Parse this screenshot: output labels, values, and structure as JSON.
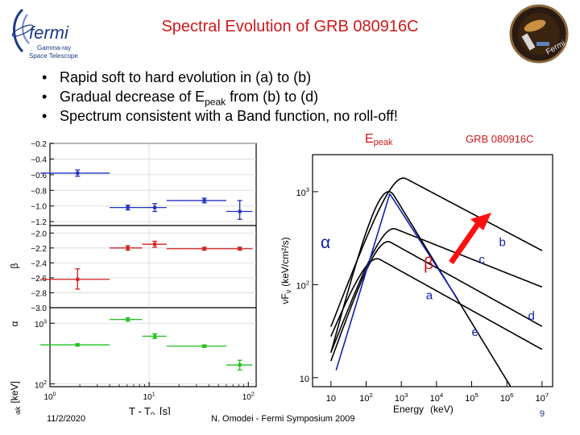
{
  "slide": {
    "title": "Spectral Evolution of GRB 080916C",
    "bullets": [
      "Rapid soft to hard evolution in (a) to (b)",
      "Gradual decrease of E",
      "Spectrum consistent with a Band function, no roll-off!"
    ],
    "bullet2_sub": "peak",
    "bullet2_tail": " from (b) to (d)",
    "footer": {
      "date": "11/2/2020",
      "author": "N. Omodei - Fermi Symposium 2009",
      "page": "9"
    }
  },
  "logo": {
    "name": "fermi",
    "subtitle1": "Gamma-ray",
    "subtitle2": "Space Telescope"
  },
  "patch": {
    "text": "Fermi"
  },
  "colors": {
    "title": "#d01818",
    "alpha_series": "#2030c0",
    "beta_series": "#d02020",
    "epeak_series": "#20c020",
    "arrow": "#ff1010"
  },
  "chart_data": [
    {
      "type": "scatter",
      "panel": "alpha",
      "ylabel": "α",
      "yticks": [
        "-0.2",
        "-0.4",
        "-0.6",
        "-0.8",
        "-1.0",
        "-1.2"
      ],
      "ylim": [
        -1.25,
        -0.2
      ],
      "x_scale": "log",
      "xlim": [
        1,
        120
      ],
      "points": [
        {
          "x": 1.9,
          "y": -0.58,
          "xlo": 0.8,
          "xhi": 4,
          "ylo": -0.62,
          "yhi": -0.54
        },
        {
          "x": 6.1,
          "y": -1.02,
          "xlo": 4,
          "xhi": 8.5,
          "ylo": -1.05,
          "yhi": -0.99
        },
        {
          "x": 11.4,
          "y": -1.02,
          "xlo": 8.5,
          "xhi": 15,
          "ylo": -1.07,
          "yhi": -0.97
        },
        {
          "x": 36,
          "y": -0.93,
          "xlo": 15,
          "xhi": 60,
          "ylo": -0.96,
          "yhi": -0.9
        },
        {
          "x": 82,
          "y": -1.07,
          "xlo": 60,
          "xhi": 110,
          "ylo": -1.17,
          "yhi": -0.93
        }
      ]
    },
    {
      "type": "scatter",
      "panel": "beta",
      "ylabel": "β",
      "yticks": [
        "-2.0",
        "-2.2",
        "-2.4",
        "-2.6",
        "-2.8",
        "-3.0"
      ],
      "ylim": [
        -3.0,
        -1.9
      ],
      "x_scale": "log",
      "xlim": [
        1,
        120
      ],
      "points": [
        {
          "x": 1.9,
          "y": -2.62,
          "xlo": 0.8,
          "xhi": 4,
          "ylo": -2.75,
          "yhi": -2.48
        },
        {
          "x": 6.1,
          "y": -2.2,
          "xlo": 4,
          "xhi": 8.5,
          "ylo": -2.23,
          "yhi": -2.17
        },
        {
          "x": 11.4,
          "y": -2.15,
          "xlo": 8.5,
          "xhi": 15,
          "ylo": -2.19,
          "yhi": -2.11
        },
        {
          "x": 36,
          "y": -2.21,
          "xlo": 15,
          "xhi": 60,
          "ylo": -2.23,
          "yhi": -2.19
        },
        {
          "x": 82,
          "y": -2.21,
          "xlo": 60,
          "xhi": 110,
          "ylo": -2.23,
          "yhi": -2.19
        }
      ]
    },
    {
      "type": "scatter",
      "panel": "epeak",
      "ylabel": "E",
      "ylabel_sub": "peak",
      "ylabel_unit": "[keV]",
      "xlabel": "T - T",
      "xlabel_sub": "0",
      "xlabel_unit": "[s]",
      "yticks": [
        "10^3",
        "10^2"
      ],
      "ylim": [
        90,
        1800
      ],
      "y_scale": "log",
      "x_scale": "log",
      "xlim": [
        1,
        120
      ],
      "xticks": [
        "10^0",
        "10^1",
        "10^2"
      ],
      "points": [
        {
          "x": 1.9,
          "y": 440,
          "xlo": 0.8,
          "xhi": 4,
          "ylo": 420,
          "yhi": 460
        },
        {
          "x": 6.1,
          "y": 1150,
          "xlo": 4,
          "xhi": 8.5,
          "ylo": 1080,
          "yhi": 1230
        },
        {
          "x": 11.4,
          "y": 610,
          "xlo": 8.5,
          "xhi": 15,
          "ylo": 560,
          "yhi": 670
        },
        {
          "x": 36,
          "y": 420,
          "xlo": 15,
          "xhi": 60,
          "ylo": 400,
          "yhi": 440
        },
        {
          "x": 82,
          "y": 205,
          "xlo": 60,
          "xhi": 110,
          "ylo": 170,
          "yhi": 245
        }
      ]
    },
    {
      "type": "line",
      "panel": "spectra",
      "title": "GRB 080916C",
      "ylabel": "νF",
      "ylabel_sub": "ν",
      "ylabel_unit": "(keV/cm²/s)",
      "xlabel": "Energy",
      "xlabel_unit": "(keV)",
      "x_scale": "log",
      "y_scale": "log",
      "xlim": [
        3,
        20000000
      ],
      "ylim": [
        8,
        2500
      ],
      "xticks": [
        "10",
        "10^2",
        "10^3",
        "10^4",
        "10^5",
        "10^6",
        "10^7"
      ],
      "yticks": [
        "10^3",
        "10^2",
        "10"
      ],
      "annotations": [
        "E",
        "peak",
        "α",
        "β"
      ],
      "series": [
        {
          "name": "a",
          "alpha": -0.58,
          "beta": -2.62,
          "epeak": 440,
          "peak_flux": 1000
        },
        {
          "name": "b",
          "alpha": -1.02,
          "beta": -2.2,
          "epeak": 1150,
          "peak_flux": 1400
        },
        {
          "name": "c",
          "alpha": -1.02,
          "beta": -2.15,
          "epeak": 610,
          "peak_flux": 400
        },
        {
          "name": "d",
          "alpha": -0.93,
          "beta": -2.21,
          "epeak": 420,
          "peak_flux": 290
        },
        {
          "name": "e",
          "alpha": -1.07,
          "beta": -2.21,
          "epeak": 205,
          "peak_flux": 190
        }
      ]
    }
  ]
}
